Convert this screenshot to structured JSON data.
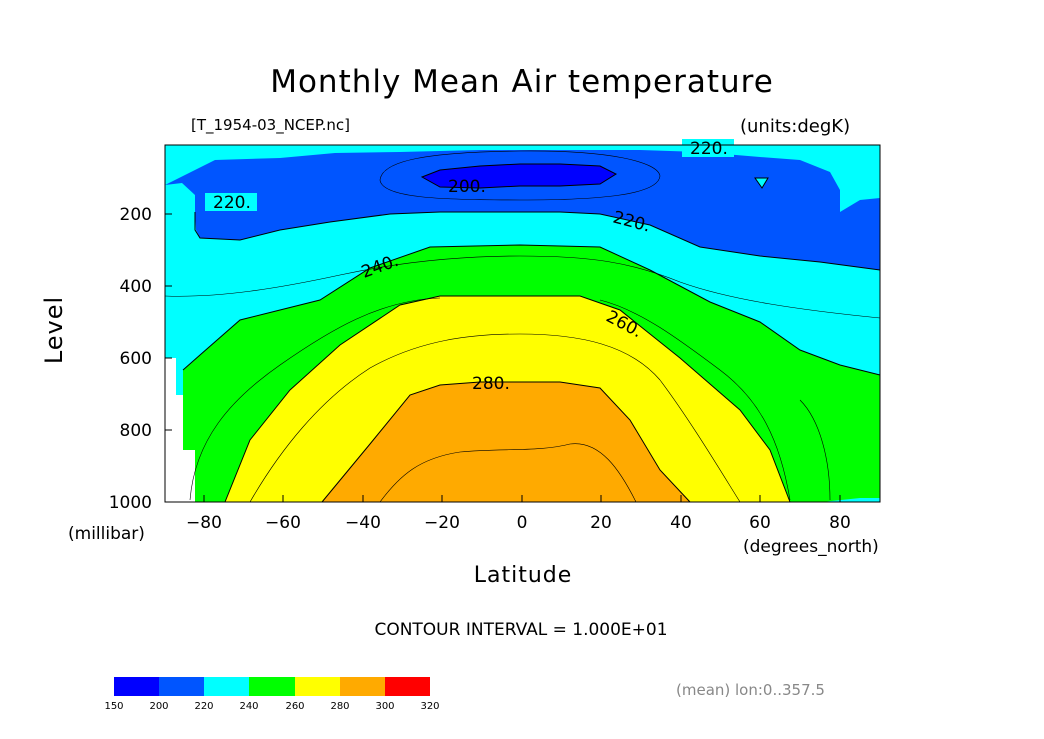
{
  "chart_data": {
    "type": "contour",
    "title": "Monthly Mean Air temperature",
    "source_label": "[T_1954-03_NCEP.nc]",
    "units_label": "(units:degK)",
    "xlabel": "Latitude",
    "x_units": "(degrees_north)",
    "ylabel": "Level",
    "y_units": "(millibar)",
    "xlim": [
      -90,
      90
    ],
    "ylim": [
      1000,
      10
    ],
    "x_ticks": [
      -80,
      -60,
      -40,
      -20,
      0,
      20,
      40,
      60,
      80
    ],
    "x_tick_labels": [
      "−80",
      "−60",
      "−40",
      "−20",
      "0",
      "20",
      "40",
      "60",
      "80"
    ],
    "y_ticks": [
      200,
      400,
      600,
      800,
      1000
    ],
    "y_tick_labels": [
      "200",
      "400",
      "600",
      "800",
      "1000"
    ],
    "contour_interval_text": "CONTOUR INTERVAL = 1.000E+01",
    "footnote": "(mean) lon:0..357.5",
    "contour_labels": [
      {
        "text": "220.",
        "lat": -80,
        "level": 175
      },
      {
        "text": "200.",
        "lat": -14,
        "level": 105
      },
      {
        "text": "220.",
        "lat": 27,
        "level": 222
      },
      {
        "text": "220.",
        "lat": 49,
        "level": 22
      },
      {
        "text": "240.",
        "lat": -37,
        "level": 355
      },
      {
        "text": "260.",
        "lat": 25,
        "level": 500
      },
      {
        "text": "280.",
        "lat": -6,
        "level": 682
      }
    ],
    "fill_levels": [
      {
        "min": 150,
        "max": 200,
        "color": "#0000ff"
      },
      {
        "min": 200,
        "max": 220,
        "color": "#0055ff"
      },
      {
        "min": 220,
        "max": 240,
        "color": "#00ffff"
      },
      {
        "min": 240,
        "max": 260,
        "color": "#00ff00"
      },
      {
        "min": 260,
        "max": 280,
        "color": "#ffff00"
      },
      {
        "min": 280,
        "max": 300,
        "color": "#ffaa00"
      },
      {
        "min": 300,
        "max": 320,
        "color": "#ff0000"
      }
    ],
    "colorbar_ticks": [
      "150",
      "200",
      "220",
      "240",
      "260",
      "280",
      "300",
      "320"
    ]
  }
}
